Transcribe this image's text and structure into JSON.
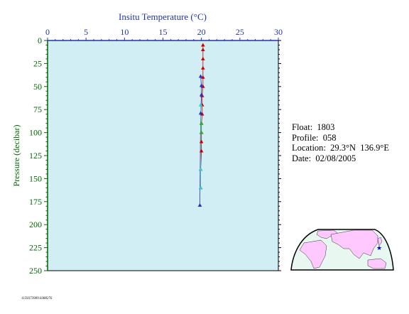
{
  "chart_data": {
    "type": "scatter",
    "title": "Insitu Temperature (°C)",
    "xlabel": "Insitu Temperature (°C)",
    "ylabel": "Pressure (decibar)",
    "x_ticks": [
      0,
      5,
      10,
      15,
      20,
      25,
      30
    ],
    "y_ticks": [
      0,
      25,
      50,
      75,
      100,
      125,
      150,
      175,
      200,
      225,
      250
    ],
    "xlim": [
      0,
      30
    ],
    "ylim": [
      250,
      0
    ],
    "y_inverted": true,
    "x_axis_position": "top",
    "grid": false,
    "plot_background": "#d2eef5",
    "series": [
      {
        "color": "#cc0000",
        "x": [
          20.2,
          20.2,
          20.2,
          20.2,
          20.2,
          20.2,
          20.1,
          20.1,
          20.1,
          20.0,
          20.0,
          20.0,
          20.0,
          19.9,
          19.9
        ],
        "y": [
          5,
          10,
          20,
          30,
          40,
          50,
          60,
          70,
          80,
          90,
          100,
          110,
          120,
          140,
          160
        ]
      },
      {
        "color": "#2233cc",
        "x": [
          19.9,
          20.0,
          20.0,
          19.9,
          19.8
        ],
        "y": [
          39,
          49,
          59,
          79,
          179
        ]
      },
      {
        "color": "#33cccc",
        "x": [
          19.9,
          19.9,
          19.9
        ],
        "y": [
          70,
          140,
          160
        ]
      },
      {
        "color": "#33aa33",
        "x": [
          20.0,
          20.0
        ],
        "y": [
          90,
          100
        ]
      }
    ]
  },
  "info": {
    "float": "Float:  1803",
    "profile": "Profile:  058",
    "location": "Location:  29.3°N  136.9°E",
    "date": "Date:  02/08/2005"
  },
  "footnote": "1159373909.0388276",
  "map": {
    "land_color": "#ffc8ff",
    "ocean_color": "#e8f8f0",
    "marker_color": "#0000cc",
    "marker_icon": "star-icon"
  }
}
